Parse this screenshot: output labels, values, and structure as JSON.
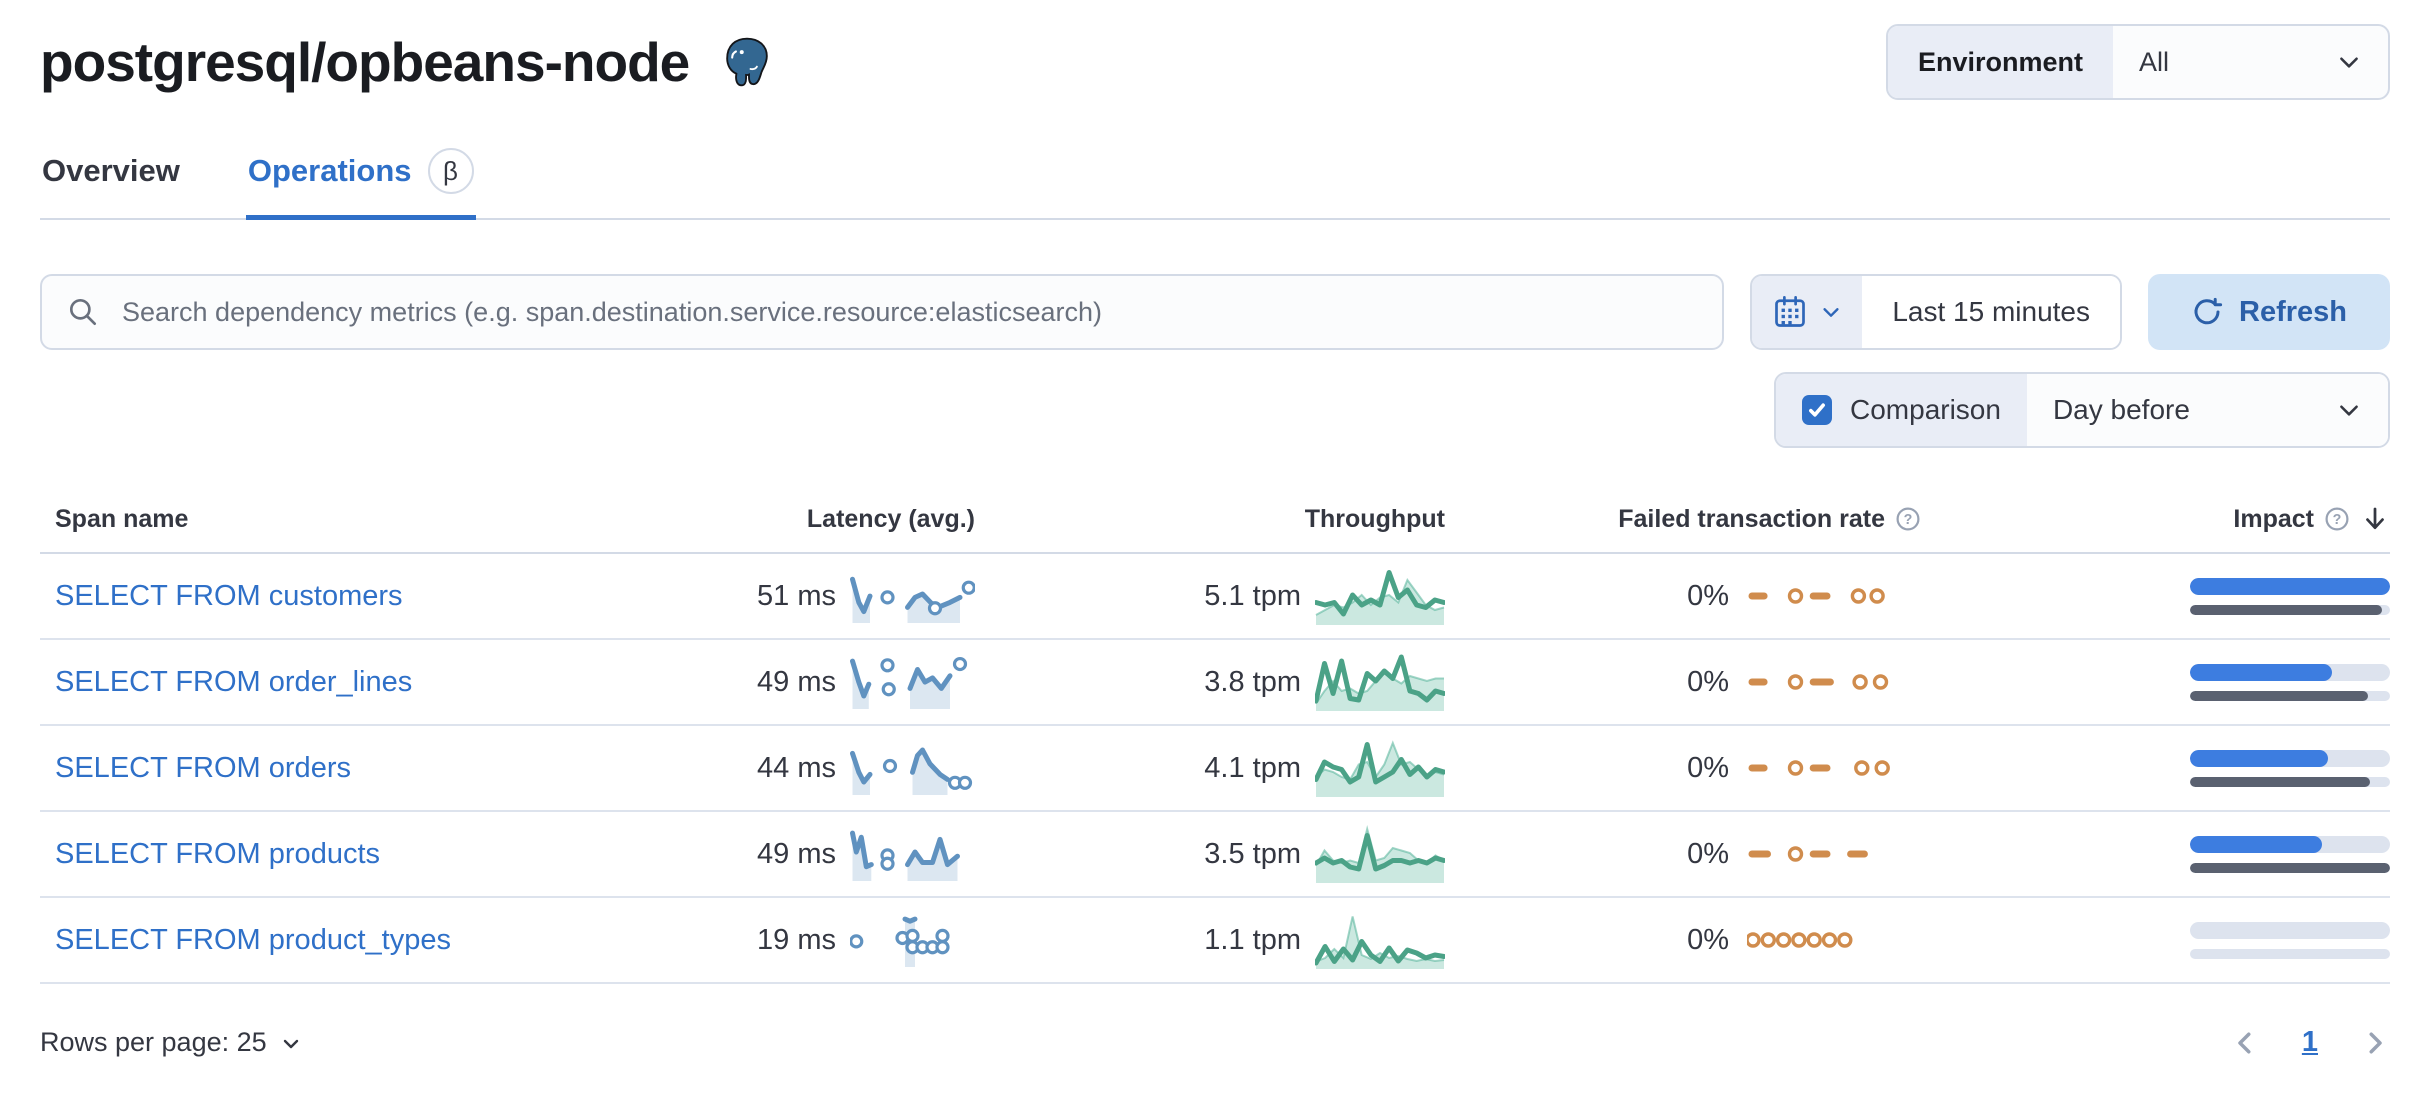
{
  "colors": {
    "link": "#2f70c8",
    "spark_blue": "#6092c0",
    "spark_green": "#54b399",
    "spark_green_dark": "#4ba287",
    "spark_orange": "#d08c4d",
    "impact_blue": "#3d7de0",
    "impact_gray": "#5a6170",
    "impact_track": "#dde3ee"
  },
  "header": {
    "title": "postgresql/opbeans-node",
    "environment": {
      "label": "Environment",
      "value": "All"
    }
  },
  "tabs": [
    {
      "label": "Overview"
    },
    {
      "label": "Operations",
      "beta": "β"
    }
  ],
  "controls": {
    "search_placeholder": "Search dependency metrics (e.g. span.destination.service.resource:elasticsearch)",
    "time_range": "Last 15 minutes",
    "refresh_label": "Refresh",
    "comparison_label": "Comparison",
    "comparison_value": "Day before"
  },
  "table": {
    "columns": [
      "Span name",
      "Latency (avg.)",
      "Throughput",
      "Failed transaction rate",
      "Impact"
    ],
    "rows": [
      {
        "name": "SELECT FROM customers",
        "latency": "51 ms",
        "throughput": "5.1 tpm",
        "failed": "0%",
        "impact": {
          "current": 100,
          "previous": 96
        },
        "latency_spark": {
          "runs": [
            [
              [
                0.02,
                0.85
              ],
              [
                0.07,
                0.3
              ],
              [
                0.11,
                0.08
              ],
              [
                0.16,
                0.45
              ]
            ],
            [
              [
                0.46,
                0.18
              ],
              [
                0.52,
                0.42
              ],
              [
                0.58,
                0.5
              ],
              [
                0.65,
                0.28
              ],
              [
                0.72,
                0.2
              ],
              [
                0.8,
                0.3
              ],
              [
                0.88,
                0.42
              ]
            ]
          ],
          "dots": [
            [
              0.3,
              0.42
            ],
            [
              0.68,
              0.16
            ],
            [
              0.95,
              0.65
            ]
          ]
        },
        "throughput_spark": {
          "current": [
            0.35,
            0.3,
            0.35,
            0.12,
            0.5,
            0.3,
            0.4,
            0.3,
            0.95,
            0.45,
            0.6,
            0.3,
            0.25,
            0.4,
            0.35
          ],
          "previous": [
            0.1,
            0.2,
            0.3,
            0.25,
            0.35,
            0.5,
            0.3,
            0.45,
            0.5,
            0.35,
            0.8,
            0.55,
            0.3,
            0.2,
            0.25
          ]
        },
        "failed_spark": {
          "segs": [
            [
              0.0,
              0.13
            ],
            [
              0.36,
              0.5
            ]
          ],
          "dots": [
            0.25,
            0.62,
            0.73
          ]
        }
      },
      {
        "name": "SELECT FROM order_lines",
        "latency": "49 ms",
        "throughput": "3.8 tpm",
        "failed": "0%",
        "impact": {
          "current": 71,
          "previous": 89
        },
        "latency_spark": {
          "runs": [
            [
              [
                0.02,
                0.95
              ],
              [
                0.07,
                0.45
              ],
              [
                0.11,
                0.12
              ],
              [
                0.15,
                0.4
              ]
            ],
            [
              [
                0.48,
                0.3
              ],
              [
                0.54,
                0.75
              ],
              [
                0.6,
                0.45
              ],
              [
                0.66,
                0.55
              ],
              [
                0.73,
                0.3
              ],
              [
                0.8,
                0.6
              ]
            ]
          ],
          "dots": [
            [
              0.3,
              0.85
            ],
            [
              0.31,
              0.28
            ],
            [
              0.88,
              0.88
            ]
          ]
        },
        "throughput_spark": {
          "current": [
            0.1,
            0.85,
            0.25,
            0.9,
            0.15,
            0.12,
            0.65,
            0.5,
            0.7,
            0.55,
            0.98,
            0.3,
            0.25,
            0.12,
            0.3,
            0.25
          ],
          "previous": [
            0.05,
            0.3,
            0.5,
            0.3,
            0.35,
            0.25,
            0.3,
            0.5,
            0.65,
            0.55,
            0.45,
            0.6,
            0.55,
            0.5,
            0.55,
            0.55
          ]
        },
        "failed_spark": {
          "segs": [
            [
              0.0,
              0.13
            ],
            [
              0.36,
              0.52
            ]
          ],
          "dots": [
            0.25,
            0.63,
            0.75
          ]
        }
      },
      {
        "name": "SELECT FROM orders",
        "latency": "44 ms",
        "throughput": "4.1 tpm",
        "failed": "0%",
        "impact": {
          "current": 69,
          "previous": 90
        },
        "latency_spark": {
          "runs": [
            [
              [
                0.02,
                0.8
              ],
              [
                0.07,
                0.35
              ],
              [
                0.11,
                0.12
              ],
              [
                0.16,
                0.3
              ]
            ],
            [
              [
                0.5,
                0.35
              ],
              [
                0.54,
                0.75
              ],
              [
                0.58,
                0.88
              ],
              [
                0.64,
                0.55
              ],
              [
                0.72,
                0.3
              ],
              [
                0.78,
                0.18
              ]
            ]
          ],
          "dots": [
            [
              0.32,
              0.5
            ],
            [
              0.84,
              0.1
            ],
            [
              0.92,
              0.1
            ]
          ]
        },
        "throughput_spark": {
          "current": [
            0.25,
            0.6,
            0.5,
            0.45,
            0.2,
            0.3,
            0.95,
            0.2,
            0.3,
            0.4,
            0.65,
            0.35,
            0.5,
            0.3,
            0.45,
            0.4
          ],
          "previous": [
            0.3,
            0.45,
            0.4,
            0.3,
            0.25,
            0.55,
            0.6,
            0.3,
            0.55,
            0.98,
            0.55,
            0.6,
            0.45,
            0.3,
            0.4,
            0.35
          ]
        },
        "failed_spark": {
          "segs": [
            [
              0.0,
              0.13
            ],
            [
              0.36,
              0.5
            ]
          ],
          "dots": [
            0.25,
            0.64,
            0.76
          ]
        }
      },
      {
        "name": "SELECT FROM products",
        "latency": "49 ms",
        "throughput": "3.5 tpm",
        "failed": "0%",
        "impact": {
          "current": 66,
          "previous": 100
        },
        "latency_spark": {
          "runs": [
            [
              [
                0.02,
                0.95
              ],
              [
                0.05,
                0.5
              ],
              [
                0.09,
                0.85
              ],
              [
                0.13,
                0.15
              ],
              [
                0.17,
                0.2
              ]
            ],
            [
              [
                0.46,
                0.2
              ],
              [
                0.52,
                0.5
              ],
              [
                0.58,
                0.25
              ],
              [
                0.66,
                0.25
              ],
              [
                0.72,
                0.8
              ],
              [
                0.78,
                0.2
              ],
              [
                0.86,
                0.4
              ]
            ]
          ],
          "dots": [
            [
              0.3,
              0.42
            ],
            [
              0.3,
              0.22
            ]
          ]
        },
        "throughput_spark": {
          "current": [
            0.3,
            0.4,
            0.3,
            0.35,
            0.22,
            0.18,
            0.85,
            0.18,
            0.25,
            0.35,
            0.35,
            0.3,
            0.35,
            0.3,
            0.4,
            0.35
          ],
          "previous": [
            0.25,
            0.55,
            0.35,
            0.3,
            0.35,
            0.3,
            0.98,
            0.35,
            0.4,
            0.6,
            0.55,
            0.5,
            0.35,
            0.3,
            0.45,
            0.35
          ]
        },
        "failed_spark": {
          "segs": [
            [
              0.0,
              0.15
            ],
            [
              0.36,
              0.5
            ],
            [
              0.58,
              0.72
            ]
          ],
          "dots": [
            0.25
          ]
        }
      },
      {
        "name": "SELECT FROM product_types",
        "latency": "19 ms",
        "throughput": "1.1 tpm",
        "failed": "0%",
        "impact": {
          "current": 0,
          "previous": 0
        },
        "latency_spark": {
          "runs": [
            [
              [
                0.44,
                0.95
              ],
              [
                0.48,
                0.9
              ],
              [
                0.52,
                0.95
              ]
            ]
          ],
          "dots": [
            [
              0.05,
              0.42
            ],
            [
              0.42,
              0.5
            ],
            [
              0.5,
              0.55
            ],
            [
              0.5,
              0.28
            ],
            [
              0.58,
              0.28
            ],
            [
              0.66,
              0.28
            ],
            [
              0.74,
              0.55
            ],
            [
              0.74,
              0.28
            ]
          ]
        },
        "throughput_spark": {
          "current": [
            0.02,
            0.35,
            0.05,
            0.3,
            0.08,
            0.45,
            0.18,
            0.05,
            0.32,
            0.06,
            0.28,
            0.22,
            0.12,
            0.18,
            0.15
          ],
          "previous": [
            0.05,
            0.12,
            0.3,
            0.12,
            0.95,
            0.18,
            0.1,
            0.22,
            0.12,
            0.16,
            0.1,
            0.06,
            0.1,
            0.06,
            0.08
          ]
        },
        "failed_spark": {
          "segs": [],
          "dots": [
            0.0,
            0.09,
            0.18,
            0.27,
            0.36,
            0.45,
            0.54
          ]
        }
      }
    ]
  },
  "footer": {
    "rows_per_page": "Rows per page: 25",
    "page": "1"
  }
}
